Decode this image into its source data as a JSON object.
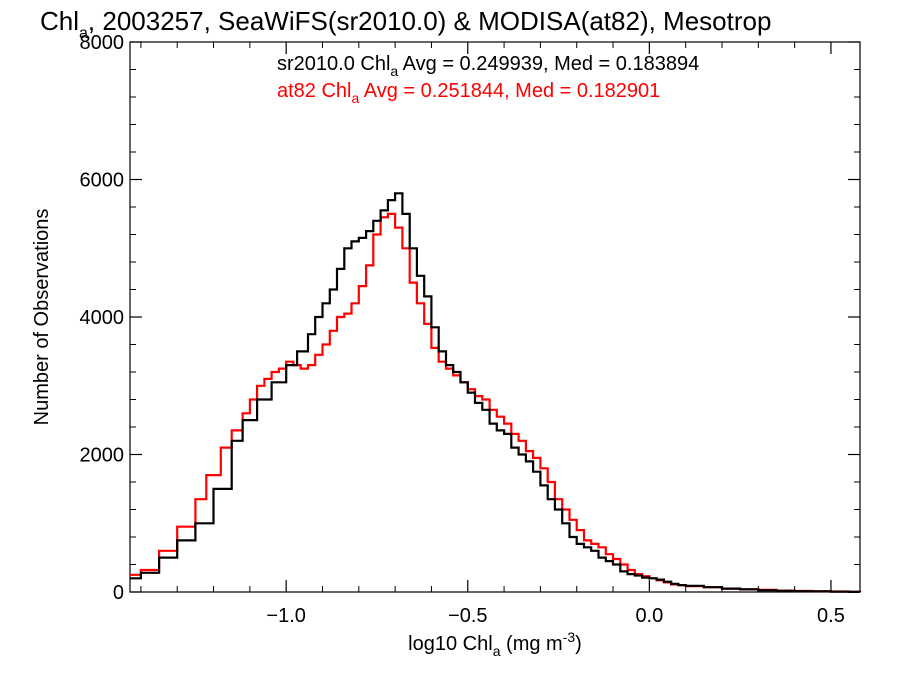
{
  "chart_data": {
    "type": "line",
    "title_main": "Chl",
    "title_sub": "a",
    "title_rest": ", 2003257, SeaWiFS(sr2010.0) & MODISA(at82), Mesotrop",
    "xlabel_pre": "log10 Chl",
    "xlabel_sub": "a",
    "xlabel_mid": " (mg m",
    "xlabel_sup": "-3",
    "xlabel_post": ")",
    "ylabel": "Number of Observations",
    "xlim": [
      -1.43,
      0.58
    ],
    "ylim": [
      0,
      8000
    ],
    "x_ticks": [
      -1.0,
      -0.5,
      0.0,
      0.5
    ],
    "x_tick_labels": [
      "−1.0",
      "−0.5",
      "0.0",
      "0.5"
    ],
    "y_ticks": [
      0,
      2000,
      4000,
      6000,
      8000
    ],
    "y_tick_labels": [
      "0",
      "2000",
      "4000",
      "6000",
      "8000"
    ],
    "grid": false,
    "legend_position": "top",
    "series": [
      {
        "name": "sr2010.0",
        "color": "#000000",
        "label_pre": "sr2010.0 Chl",
        "label_sub": "a",
        "label_post": " Avg = 0.249939, Med = 0.183894",
        "x": [
          -1.43,
          -1.4,
          -1.35,
          -1.3,
          -1.25,
          -1.2,
          -1.15,
          -1.12,
          -1.08,
          -1.04,
          -1.0,
          -0.97,
          -0.94,
          -0.92,
          -0.9,
          -0.88,
          -0.86,
          -0.84,
          -0.82,
          -0.8,
          -0.78,
          -0.76,
          -0.74,
          -0.72,
          -0.7,
          -0.68,
          -0.66,
          -0.64,
          -0.62,
          -0.6,
          -0.58,
          -0.56,
          -0.54,
          -0.52,
          -0.5,
          -0.48,
          -0.46,
          -0.44,
          -0.42,
          -0.4,
          -0.38,
          -0.36,
          -0.34,
          -0.32,
          -0.3,
          -0.28,
          -0.26,
          -0.24,
          -0.22,
          -0.2,
          -0.18,
          -0.16,
          -0.14,
          -0.12,
          -0.1,
          -0.08,
          -0.06,
          -0.04,
          -0.02,
          0.0,
          0.02,
          0.04,
          0.06,
          0.08,
          0.1,
          0.15,
          0.2,
          0.25,
          0.3,
          0.35,
          0.4,
          0.45,
          0.5,
          0.55,
          0.58
        ],
        "y": [
          200,
          280,
          500,
          750,
          1000,
          1500,
          2200,
          2500,
          2800,
          3050,
          3300,
          3500,
          3750,
          4000,
          4200,
          4400,
          4700,
          5000,
          5100,
          5150,
          5250,
          5400,
          5550,
          5700,
          5800,
          5500,
          5000,
          4600,
          4300,
          3850,
          3500,
          3300,
          3200,
          3050,
          2900,
          2750,
          2650,
          2450,
          2350,
          2300,
          2100,
          2000,
          1900,
          1750,
          1550,
          1350,
          1200,
          1000,
          800,
          700,
          650,
          600,
          500,
          450,
          400,
          300,
          260,
          240,
          210,
          200,
          180,
          150,
          120,
          100,
          90,
          70,
          50,
          40,
          25,
          18,
          12,
          10,
          5,
          2,
          0
        ]
      },
      {
        "name": "at82",
        "color": "#ff0000",
        "label_pre": "at82 Chl",
        "label_sub": "a",
        "label_post": " Avg = 0.251844, Med = 0.182901",
        "x": [
          -1.43,
          -1.4,
          -1.35,
          -1.3,
          -1.25,
          -1.22,
          -1.18,
          -1.15,
          -1.12,
          -1.1,
          -1.08,
          -1.06,
          -1.04,
          -1.02,
          -1.0,
          -0.98,
          -0.96,
          -0.94,
          -0.92,
          -0.9,
          -0.88,
          -0.86,
          -0.84,
          -0.82,
          -0.8,
          -0.78,
          -0.76,
          -0.74,
          -0.72,
          -0.7,
          -0.68,
          -0.66,
          -0.64,
          -0.62,
          -0.6,
          -0.58,
          -0.56,
          -0.54,
          -0.52,
          -0.5,
          -0.48,
          -0.46,
          -0.44,
          -0.42,
          -0.4,
          -0.38,
          -0.36,
          -0.34,
          -0.32,
          -0.3,
          -0.28,
          -0.26,
          -0.24,
          -0.22,
          -0.2,
          -0.18,
          -0.16,
          -0.14,
          -0.12,
          -0.1,
          -0.08,
          -0.06,
          -0.04,
          -0.02,
          0.0,
          0.02,
          0.04,
          0.06,
          0.08,
          0.1,
          0.15,
          0.2,
          0.25,
          0.3,
          0.35,
          0.4,
          0.45,
          0.5,
          0.55,
          0.58
        ],
        "y": [
          250,
          320,
          600,
          950,
          1350,
          1700,
          2100,
          2350,
          2600,
          2800,
          3000,
          3100,
          3200,
          3250,
          3350,
          3300,
          3250,
          3300,
          3450,
          3600,
          3800,
          4000,
          4050,
          4200,
          4450,
          4750,
          5200,
          5450,
          5500,
          5300,
          5000,
          4500,
          4200,
          3900,
          3550,
          3350,
          3250,
          3150,
          3050,
          2950,
          2850,
          2800,
          2650,
          2550,
          2450,
          2300,
          2200,
          2050,
          1950,
          1800,
          1600,
          1350,
          1200,
          1050,
          900,
          750,
          700,
          650,
          550,
          480,
          400,
          320,
          260,
          230,
          200,
          170,
          140,
          110,
          100,
          85,
          70,
          50,
          40,
          30,
          20,
          15,
          12,
          8,
          4,
          0
        ]
      }
    ]
  }
}
